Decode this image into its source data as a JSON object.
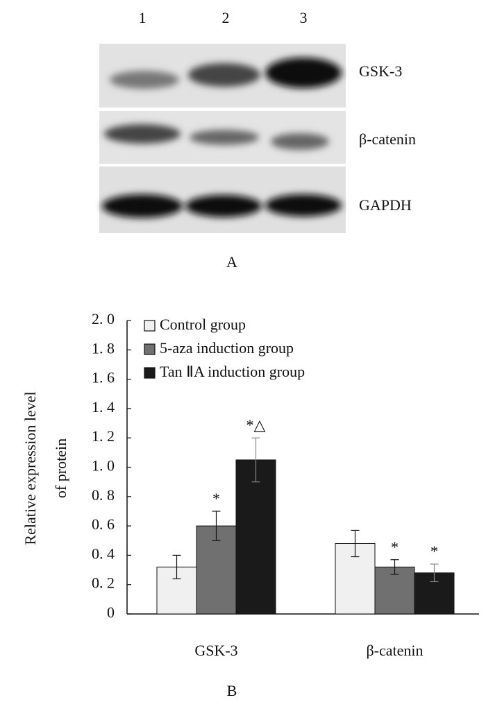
{
  "blot": {
    "lanes": [
      "1",
      "2",
      "3"
    ],
    "proteins": [
      "GSK-3",
      "β-catenin",
      "GAPDH"
    ],
    "panel_label": "A"
  },
  "chart_data": {
    "type": "bar",
    "panel_label": "B",
    "ylabel": [
      "Relative expression level",
      "of protein"
    ],
    "categories": [
      "GSK-3",
      "β-catenin"
    ],
    "series": [
      {
        "name": "Control group",
        "color": "#f0f0f0",
        "values": [
          0.32,
          0.48
        ],
        "errors": [
          0.08,
          0.09
        ],
        "labels": [
          null,
          null
        ]
      },
      {
        "name": "5-aza induction group",
        "color": "#707070",
        "values": [
          0.6,
          0.32
        ],
        "errors": [
          0.1,
          0.05
        ],
        "labels": [
          "*",
          "*"
        ]
      },
      {
        "name": "Tan ⅡA induction group",
        "color": "#1a1a1a",
        "values": [
          1.05,
          0.28
        ],
        "errors": [
          0.15,
          0.06
        ],
        "labels": [
          "*△",
          "*"
        ]
      }
    ],
    "ylim": [
      0,
      2
    ],
    "yticks": [
      0,
      {
        "value": 0.2,
        "label": "0. 2"
      },
      {
        "value": 0.4,
        "label": "0. 4"
      },
      {
        "value": 0.6,
        "label": "0. 6"
      },
      {
        "value": 0.8,
        "label": "0. 8"
      },
      {
        "value": 1.0,
        "label": "1. 0"
      },
      {
        "value": 1.2,
        "label": "1. 2"
      },
      {
        "value": 1.4,
        "label": "1. 4"
      },
      {
        "value": 1.6,
        "label": "1. 6"
      },
      {
        "value": 1.8,
        "label": "1. 8"
      },
      {
        "value": 2.0,
        "label": "2. 0"
      }
    ],
    "legend": "upper left"
  }
}
